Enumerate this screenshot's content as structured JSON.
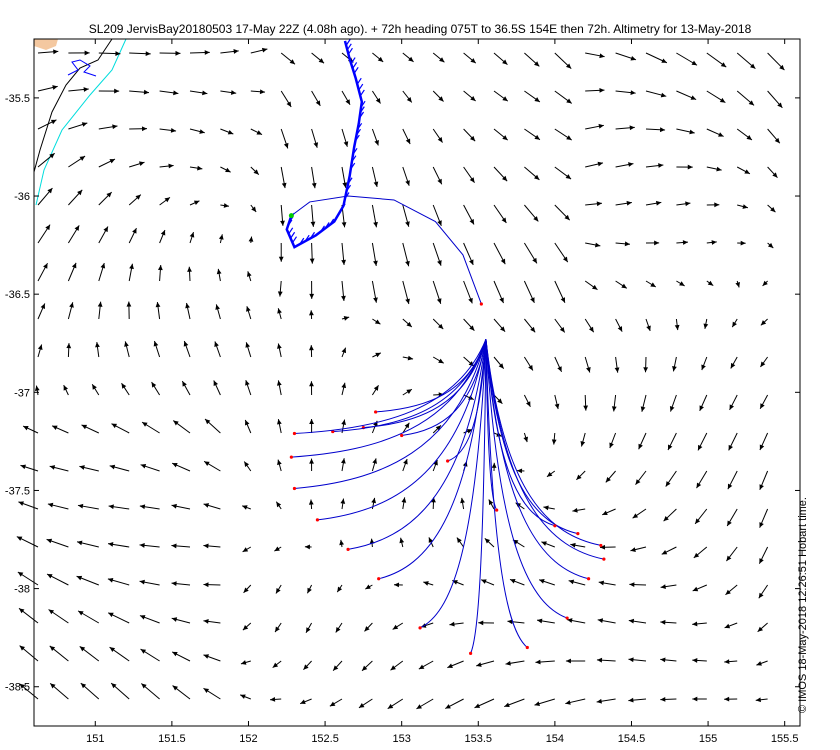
{
  "title": "SL209 JervisBay20180503 17-May 22Z (4.08h ago). + 72h heading 075T to 36.5S 154E then 72h. Altimetry for 13-May-2018",
  "credit": "© IMOS 18-May-2018 12:26:51 Hobart time.",
  "colors": {
    "arrows": "#000000",
    "track": "#0000ff",
    "forecast": "#0000cc",
    "endpoints": "#ff0000",
    "contour": "#00dddd",
    "land": "#f4c8a0"
  },
  "chart_data": {
    "type": "map",
    "xlim": [
      150.6,
      155.6
    ],
    "ylim": [
      -38.7,
      -35.2
    ],
    "xticks": [
      151,
      151.5,
      152,
      152.5,
      153,
      153.5,
      154,
      154.5,
      155,
      155.5
    ],
    "yticks": [
      -35.5,
      -36,
      -36.5,
      -37,
      -37.5,
      -38,
      -38.5
    ],
    "xtick_labels": [
      "151",
      "151.5",
      "152",
      "152.5",
      "153",
      "153.5",
      "154",
      "154.5",
      "155",
      "155.5"
    ],
    "ytick_labels": [
      "-35.5",
      "-36",
      "-36.5",
      "-37",
      "-37.5",
      "-38",
      "-38.5"
    ],
    "glider_track": [
      [
        152.63,
        -35.21
      ],
      [
        152.66,
        -35.3
      ],
      [
        152.7,
        -35.4
      ],
      [
        152.74,
        -35.52
      ],
      [
        152.72,
        -35.63
      ],
      [
        152.69,
        -35.75
      ],
      [
        152.66,
        -35.9
      ],
      [
        152.62,
        -36.05
      ],
      [
        152.56,
        -36.13
      ],
      [
        152.44,
        -36.2
      ],
      [
        152.3,
        -36.26
      ],
      [
        152.25,
        -36.17
      ],
      [
        152.28,
        -36.1
      ]
    ],
    "planned_path": [
      [
        152.28,
        -36.1
      ],
      [
        152.4,
        -36.03
      ],
      [
        152.65,
        -36.0
      ],
      [
        152.95,
        -36.02
      ],
      [
        153.22,
        -36.13
      ],
      [
        153.4,
        -36.3
      ],
      [
        153.52,
        -36.55
      ]
    ],
    "spread_origin": [
      153.55,
      -36.73
    ],
    "forecast_endpoints": [
      [
        152.83,
        -37.1
      ],
      [
        152.75,
        -37.18
      ],
      [
        152.55,
        -37.2
      ],
      [
        152.3,
        -37.21
      ],
      [
        152.28,
        -37.33
      ],
      [
        152.3,
        -37.49
      ],
      [
        152.45,
        -37.65
      ],
      [
        152.65,
        -37.8
      ],
      [
        152.85,
        -37.95
      ],
      [
        153.12,
        -38.2
      ],
      [
        153.45,
        -38.33
      ],
      [
        153.82,
        -38.3
      ],
      [
        154.08,
        -38.15
      ],
      [
        154.22,
        -37.95
      ],
      [
        154.32,
        -37.85
      ],
      [
        154.3,
        -37.78
      ],
      [
        154.15,
        -37.72
      ],
      [
        154.0,
        -37.68
      ],
      [
        153.62,
        -37.6
      ],
      [
        153.3,
        -37.35
      ],
      [
        153.0,
        -37.22
      ]
    ]
  }
}
